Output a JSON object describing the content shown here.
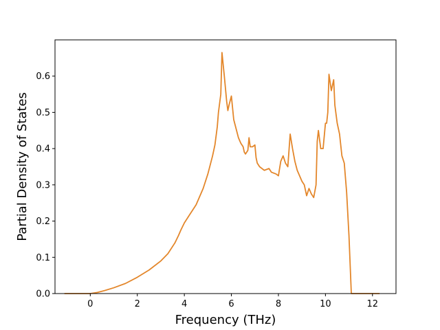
{
  "chart_data": {
    "type": "line",
    "title": "",
    "xlabel": "Frequency (THz)",
    "ylabel": "Partial Density of States",
    "xlim": [
      -1.5,
      13.0
    ],
    "ylim": [
      0.0,
      0.7
    ],
    "x_ticks": [
      0,
      2,
      4,
      6,
      8,
      10,
      12
    ],
    "x_tick_labels": [
      "0",
      "2",
      "4",
      "6",
      "8",
      "10",
      "12"
    ],
    "y_ticks": [
      0.0,
      0.1,
      0.2,
      0.3,
      0.4,
      0.5,
      0.6
    ],
    "y_tick_labels": [
      "0.0",
      "0.1",
      "0.2",
      "0.3",
      "0.4",
      "0.5",
      "0.6"
    ],
    "grid": false,
    "legend": "none",
    "series": [
      {
        "color": "#e3862a",
        "x": [
          -1.1,
          0.0,
          0.3,
          0.6,
          1.0,
          1.5,
          2.0,
          2.5,
          3.0,
          3.3,
          3.6,
          3.75,
          3.85,
          4.0,
          4.2,
          4.5,
          4.8,
          5.0,
          5.2,
          5.3,
          5.4,
          5.45,
          5.55,
          5.6,
          5.7,
          5.8,
          5.85,
          5.9,
          6.0,
          6.1,
          6.2,
          6.3,
          6.4,
          6.5,
          6.55,
          6.6,
          6.7,
          6.75,
          6.8,
          6.9,
          7.0,
          7.05,
          7.1,
          7.2,
          7.4,
          7.6,
          7.7,
          7.9,
          8.0,
          8.1,
          8.2,
          8.3,
          8.4,
          8.5,
          8.55,
          8.6,
          8.7,
          8.8,
          9.0,
          9.1,
          9.2,
          9.3,
          9.4,
          9.5,
          9.6,
          9.65,
          9.7,
          9.8,
          9.9,
          10.0,
          10.05,
          10.1,
          10.15,
          10.25,
          10.35,
          10.4,
          10.5,
          10.6,
          10.7,
          10.8,
          10.9,
          11.0,
          11.1,
          11.2,
          11.3,
          11.5,
          12.0,
          12.3
        ],
        "y": [
          0.0,
          0.0,
          0.003,
          0.008,
          0.016,
          0.028,
          0.045,
          0.065,
          0.09,
          0.11,
          0.14,
          0.16,
          0.175,
          0.195,
          0.215,
          0.245,
          0.29,
          0.33,
          0.38,
          0.41,
          0.46,
          0.5,
          0.55,
          0.665,
          0.6,
          0.53,
          0.505,
          0.52,
          0.545,
          0.48,
          0.455,
          0.43,
          0.415,
          0.405,
          0.39,
          0.385,
          0.395,
          0.43,
          0.405,
          0.405,
          0.41,
          0.375,
          0.36,
          0.35,
          0.34,
          0.345,
          0.335,
          0.33,
          0.325,
          0.365,
          0.38,
          0.36,
          0.35,
          0.44,
          0.42,
          0.4,
          0.365,
          0.34,
          0.31,
          0.3,
          0.27,
          0.29,
          0.275,
          0.265,
          0.3,
          0.42,
          0.45,
          0.4,
          0.4,
          0.47,
          0.47,
          0.5,
          0.605,
          0.56,
          0.59,
          0.52,
          0.47,
          0.44,
          0.38,
          0.36,
          0.28,
          0.16,
          0.0,
          0.0,
          0.0,
          0.0,
          0.0,
          0.0
        ]
      }
    ]
  }
}
